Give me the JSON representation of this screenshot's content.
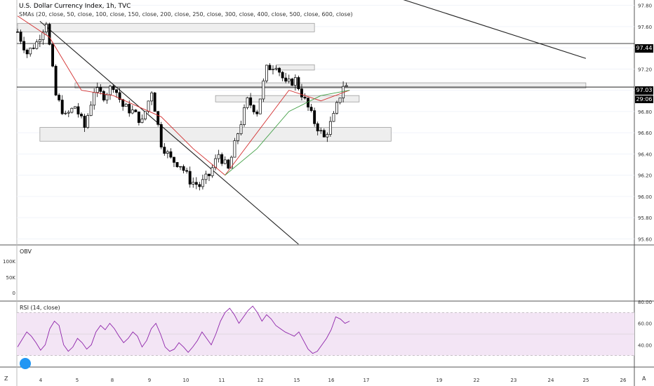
{
  "header": {
    "title": "U.S. Dollar Currency Index, 1h, TVC",
    "indicator": "SMAs (20, close, 50, close, 100, close, 150, close, 200, close, 250, close, 300, close, 400, close, 500, close, 600, close)"
  },
  "price_badges": {
    "upper": "97.44",
    "current": "97.03",
    "countdown": "29:06"
  },
  "colors": {
    "background": "#ffffff",
    "candle": "#000000",
    "grid": "#f0f3fa",
    "sma_fast": "#d32f2f",
    "sma_slow": "#43a047",
    "zone_fill": "#eeeeee",
    "zone_border": "#9e9e9e",
    "rsi_line": "#8e24aa",
    "rsi_band": "#f3e5f5",
    "badge": "#000000"
  },
  "panes": {
    "obv_label": "OBV",
    "rsi_label": "RSI (14, close)"
  },
  "bottom_bar": {
    "left_button": "Z",
    "right_button": "A"
  },
  "chart_data": [
    {
      "type": "candlestick",
      "title": "U.S. Dollar Currency Index, 1h, TVC",
      "y_ticks": [
        "97.80",
        "97.60",
        "97.40",
        "97.20",
        "97.00",
        "96.80",
        "96.60",
        "96.40",
        "96.20",
        "96.00",
        "95.80",
        "95.60"
      ],
      "ylim": [
        95.55,
        97.85
      ],
      "x_ticks": [
        "4",
        "5",
        "8",
        "9",
        "10",
        "11",
        "12",
        "15",
        "16",
        "17",
        "19",
        "22",
        "23",
        "24",
        "25",
        "26"
      ],
      "close_path": [
        [
          0,
          97.55
        ],
        [
          3,
          97.35
        ],
        [
          6,
          97.45
        ],
        [
          9,
          97.65
        ],
        [
          12,
          96.95
        ],
        [
          15,
          96.75
        ],
        [
          18,
          96.85
        ],
        [
          21,
          96.65
        ],
        [
          24,
          97.0
        ],
        [
          27,
          96.95
        ],
        [
          30,
          97.05
        ],
        [
          33,
          96.85
        ],
        [
          36,
          96.8
        ],
        [
          39,
          96.7
        ],
        [
          42,
          97.0
        ],
        [
          45,
          96.5
        ],
        [
          48,
          96.35
        ],
        [
          51,
          96.3
        ],
        [
          54,
          96.15
        ],
        [
          57,
          96.1
        ],
        [
          60,
          96.2
        ],
        [
          63,
          96.4
        ],
        [
          66,
          96.25
        ],
        [
          69,
          96.6
        ],
        [
          72,
          96.9
        ],
        [
          75,
          96.8
        ],
        [
          78,
          97.2
        ],
        [
          81,
          97.25
        ],
        [
          84,
          97.05
        ],
        [
          87,
          97.1
        ],
        [
          90,
          96.9
        ],
        [
          93,
          96.7
        ],
        [
          96,
          96.55
        ],
        [
          99,
          96.75
        ],
        [
          102,
          97.05
        ],
        [
          104,
          97.02
        ]
      ],
      "sma_fast": [
        [
          0,
          97.7
        ],
        [
          10,
          97.5
        ],
        [
          20,
          97.0
        ],
        [
          30,
          96.95
        ],
        [
          45,
          96.75
        ],
        [
          55,
          96.45
        ],
        [
          65,
          96.2
        ],
        [
          85,
          97.0
        ],
        [
          95,
          96.9
        ],
        [
          104,
          97.0
        ]
      ],
      "sma_slow": [
        [
          65,
          96.2
        ],
        [
          75,
          96.45
        ],
        [
          85,
          96.8
        ],
        [
          95,
          96.95
        ],
        [
          104,
          97.0
        ]
      ],
      "trendlines": [
        {
          "from": [
            7,
            97.65
          ],
          "to": [
            88,
            95.55
          ]
        },
        {
          "from": [
            116,
            97.9
          ],
          "to": [
            178,
            97.3
          ]
        }
      ],
      "zones": [
        {
          "x": [
            0,
            93
          ],
          "y": [
            97.55,
            97.63
          ]
        },
        {
          "x": [
            81,
            93
          ],
          "y": [
            97.19,
            97.24
          ]
        },
        {
          "x": [
            18,
            178
          ],
          "y": [
            97.02,
            97.07
          ]
        },
        {
          "x": [
            62,
            107
          ],
          "y": [
            96.89,
            96.95
          ]
        },
        {
          "x": [
            7,
            117
          ],
          "y": [
            96.52,
            96.65
          ]
        }
      ],
      "levels": [
        97.44,
        97.03
      ]
    },
    {
      "type": "line",
      "title": "OBV",
      "y_ticks": [
        "100K",
        "50K",
        "0"
      ],
      "values": []
    },
    {
      "type": "line",
      "title": "RSI (14, close)",
      "y_ticks": [
        "80.00",
        "60.00",
        "40.00"
      ],
      "ylim": [
        20,
        80
      ],
      "band": [
        30,
        70
      ],
      "values": [
        38,
        45,
        52,
        48,
        42,
        35,
        40,
        55,
        62,
        58,
        40,
        34,
        38,
        46,
        42,
        36,
        40,
        52,
        58,
        54,
        60,
        55,
        48,
        42,
        46,
        52,
        48,
        38,
        44,
        55,
        60,
        50,
        38,
        34,
        36,
        42,
        38,
        33,
        38,
        44,
        52,
        46,
        40,
        50,
        62,
        70,
        74,
        68,
        60,
        66,
        72,
        76,
        70,
        62,
        68,
        64,
        58,
        55,
        52,
        50,
        48,
        52,
        44,
        36,
        32,
        34,
        40,
        46,
        54,
        66,
        64,
        60,
        62
      ]
    }
  ]
}
